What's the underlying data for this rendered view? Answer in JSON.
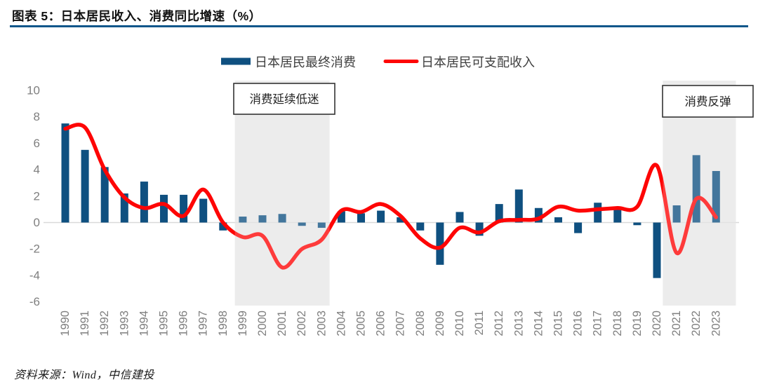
{
  "figure": {
    "title": "图表 5：日本居民收入、消费同比增速（%）",
    "source": "资料来源：Wind，中信建投"
  },
  "legend": {
    "items": [
      {
        "label": "日本居民最终消费",
        "marker": "bar-swatch",
        "color": "#0f5080"
      },
      {
        "label": "日本居民可支配收入",
        "marker": "line-swatch",
        "color": "#fe0505"
      }
    ]
  },
  "annotations": [
    {
      "text": "消费延续低迷",
      "span_years": [
        1999,
        2003
      ]
    },
    {
      "text": "消费反弹",
      "span_years": [
        2021,
        2023
      ]
    }
  ],
  "chart_data": {
    "type": "bar",
    "title": "日本居民收入、消费同比增速（%）",
    "xlabel": "",
    "ylabel": "",
    "ylim": [
      -6,
      10
    ],
    "yticks": [
      10,
      8,
      6,
      4,
      2,
      0,
      -2,
      -4,
      -6
    ],
    "grid": false,
    "legend_position": "top-center",
    "categories": [
      "1990",
      "1991",
      "1992",
      "1993",
      "1994",
      "1995",
      "1996",
      "1997",
      "1998",
      "1999",
      "2000",
      "2001",
      "2002",
      "2003",
      "2004",
      "2005",
      "2006",
      "2007",
      "2008",
      "2009",
      "2010",
      "2011",
      "2012",
      "2013",
      "2014",
      "2015",
      "2016",
      "2017",
      "2018",
      "2019",
      "2020",
      "2021",
      "2022",
      "2023"
    ],
    "series": [
      {
        "name": "日本居民最终消费",
        "type": "bar",
        "color": "#0f5080",
        "values": [
          7.5,
          5.5,
          4.2,
          2.2,
          3.1,
          2.1,
          2.1,
          1.8,
          -0.6,
          0.45,
          0.55,
          0.65,
          -0.25,
          -0.4,
          0.85,
          0.7,
          0.9,
          0.4,
          -0.6,
          -3.2,
          0.8,
          -1.0,
          1.4,
          2.5,
          1.1,
          0.4,
          -0.8,
          1.5,
          1.1,
          -0.2,
          -4.2,
          1.3,
          5.1,
          3.9
        ]
      },
      {
        "name": "日本居民可支配收入",
        "type": "line",
        "color": "#fe0505",
        "values": [
          7.1,
          7.2,
          4.0,
          1.9,
          1.1,
          1.4,
          0.5,
          2.5,
          0.0,
          -1.1,
          -1.0,
          -3.4,
          -2.0,
          -1.3,
          0.9,
          0.8,
          1.4,
          0.5,
          -1.2,
          -1.9,
          -0.4,
          -0.75,
          0.1,
          0.2,
          0.3,
          1.2,
          0.9,
          1.0,
          1.1,
          1.2,
          4.3,
          -2.3,
          1.8,
          0.4
        ]
      }
    ],
    "highlight_bands": [
      {
        "label": "消费延续低迷",
        "years": [
          1999,
          2003
        ]
      },
      {
        "label": "消费反弹",
        "years": [
          2021,
          2023
        ]
      }
    ]
  },
  "colors": {
    "bar": "#0f5080",
    "line": "#fe0505",
    "band": "#e7e7e7",
    "axis_text": "#7f7f7f",
    "zero_line": "#d9d9d9",
    "title_rule": "#0d568a",
    "legend_text": "#404040",
    "annotation_text": "#222222",
    "annotation_border": "#333333"
  }
}
